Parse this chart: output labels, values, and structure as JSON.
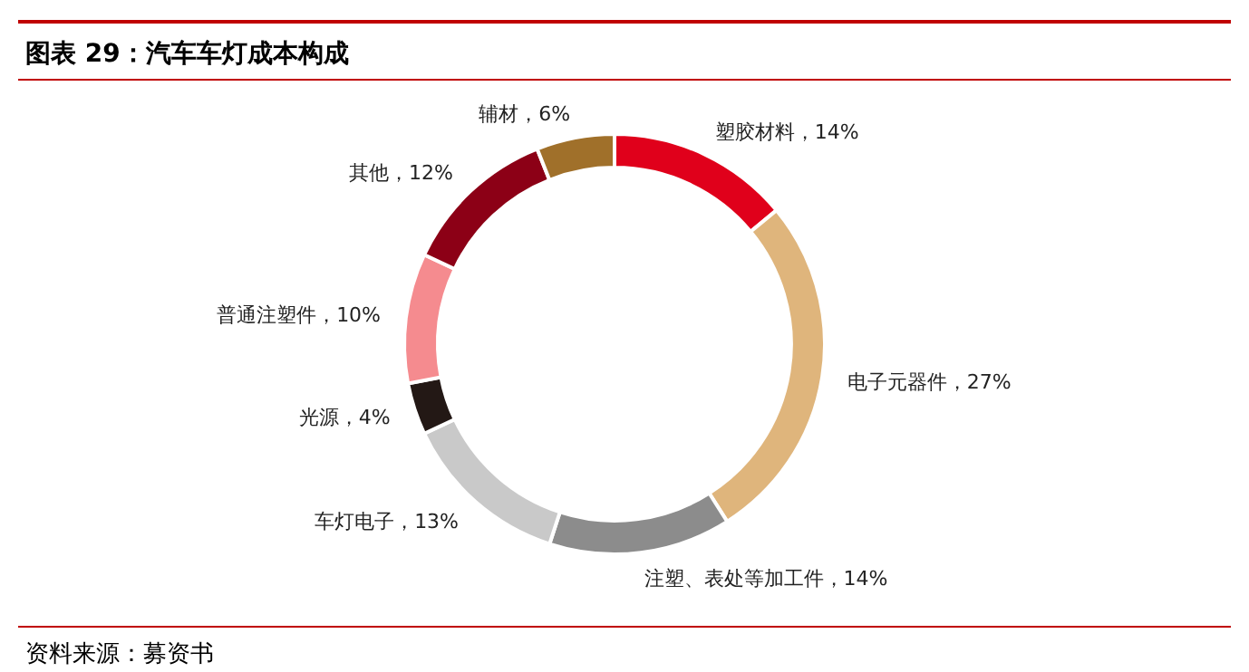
{
  "chart_data": {
    "type": "donut",
    "title": "图表 29：汽车车灯成本构成",
    "categories": [
      "塑胶材料",
      "电子元器件",
      "注塑、表处等加工件",
      "车灯电子",
      "光源",
      "普通注塑件",
      "其他",
      "辅材"
    ],
    "values": [
      14,
      27,
      14,
      13,
      4,
      10,
      12,
      6
    ],
    "colors": [
      "#e0001b",
      "#dfb57c",
      "#8c8c8c",
      "#c9c9c9",
      "#231815",
      "#f58b8f",
      "#8c0016",
      "#a0702a"
    ],
    "value_labels": [
      "，14%",
      "，27%",
      "，14%",
      "，13%",
      "，4%",
      "，10%",
      "，12%",
      "，6%"
    ],
    "annotations": [
      "资料来源：募资书"
    ]
  }
}
